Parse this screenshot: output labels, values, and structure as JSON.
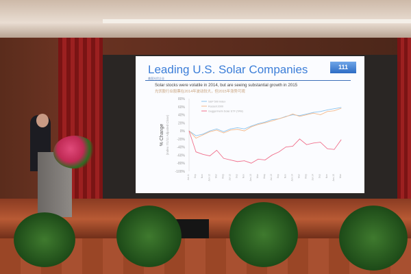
{
  "slide": {
    "title": "Leading U.S. Solar Companies",
    "title_small": "美国光伏企业",
    "logo_text": "111",
    "subtitle_en": "Solar stocks were volatile in 2014, but are seeing substantial growth in 2015",
    "subtitle_cn": "光伏股行业股票在2014年波动较大，但2015年涨势可观"
  },
  "chart_data": {
    "type": "line",
    "ylabel": "% Change",
    "ylabel_sub": "(Index 7/1/11 Adjusted Close)",
    "ylim": [
      -100,
      80
    ],
    "yticks": [
      "80%",
      "60%",
      "40%",
      "20%",
      "0%",
      "-20%",
      "-40%",
      "-60%",
      "-80%",
      "-100%"
    ],
    "legend_placement": "top-left",
    "x": [
      "Jul-11",
      "Sep",
      "Nov",
      "Jan-12",
      "Mar",
      "May",
      "Jul-12",
      "Sep",
      "Nov",
      "Jan-13",
      "Mar",
      "May",
      "Jul-13",
      "Sep",
      "Nov",
      "Jan-14",
      "Mar",
      "May",
      "Jul-14",
      "Sep",
      "Nov",
      "Jan-15",
      "Mar"
    ],
    "series": [
      {
        "name": "S&P 500 Index",
        "color": "#8cc4ee",
        "values": [
          0,
          -12,
          -8,
          0,
          5,
          -2,
          5,
          8,
          5,
          12,
          18,
          22,
          28,
          30,
          36,
          40,
          38,
          42,
          46,
          48,
          52,
          55,
          58
        ]
      },
      {
        "name": "Russell 2000",
        "color": "#f5b98a",
        "values": [
          0,
          -18,
          -10,
          -2,
          2,
          -5,
          2,
          4,
          0,
          10,
          16,
          20,
          25,
          30,
          35,
          42,
          36,
          40,
          44,
          40,
          48,
          50,
          56
        ]
      },
      {
        "name": "Guggenheim Solar ETF (TAN)",
        "color": "#f0708c",
        "values": [
          0,
          -52,
          -58,
          -62,
          -48,
          -68,
          -72,
          -76,
          -74,
          -80,
          -70,
          -72,
          -60,
          -52,
          -40,
          -38,
          -20,
          -34,
          -30,
          -28,
          -44,
          -46,
          -22
        ]
      }
    ]
  }
}
